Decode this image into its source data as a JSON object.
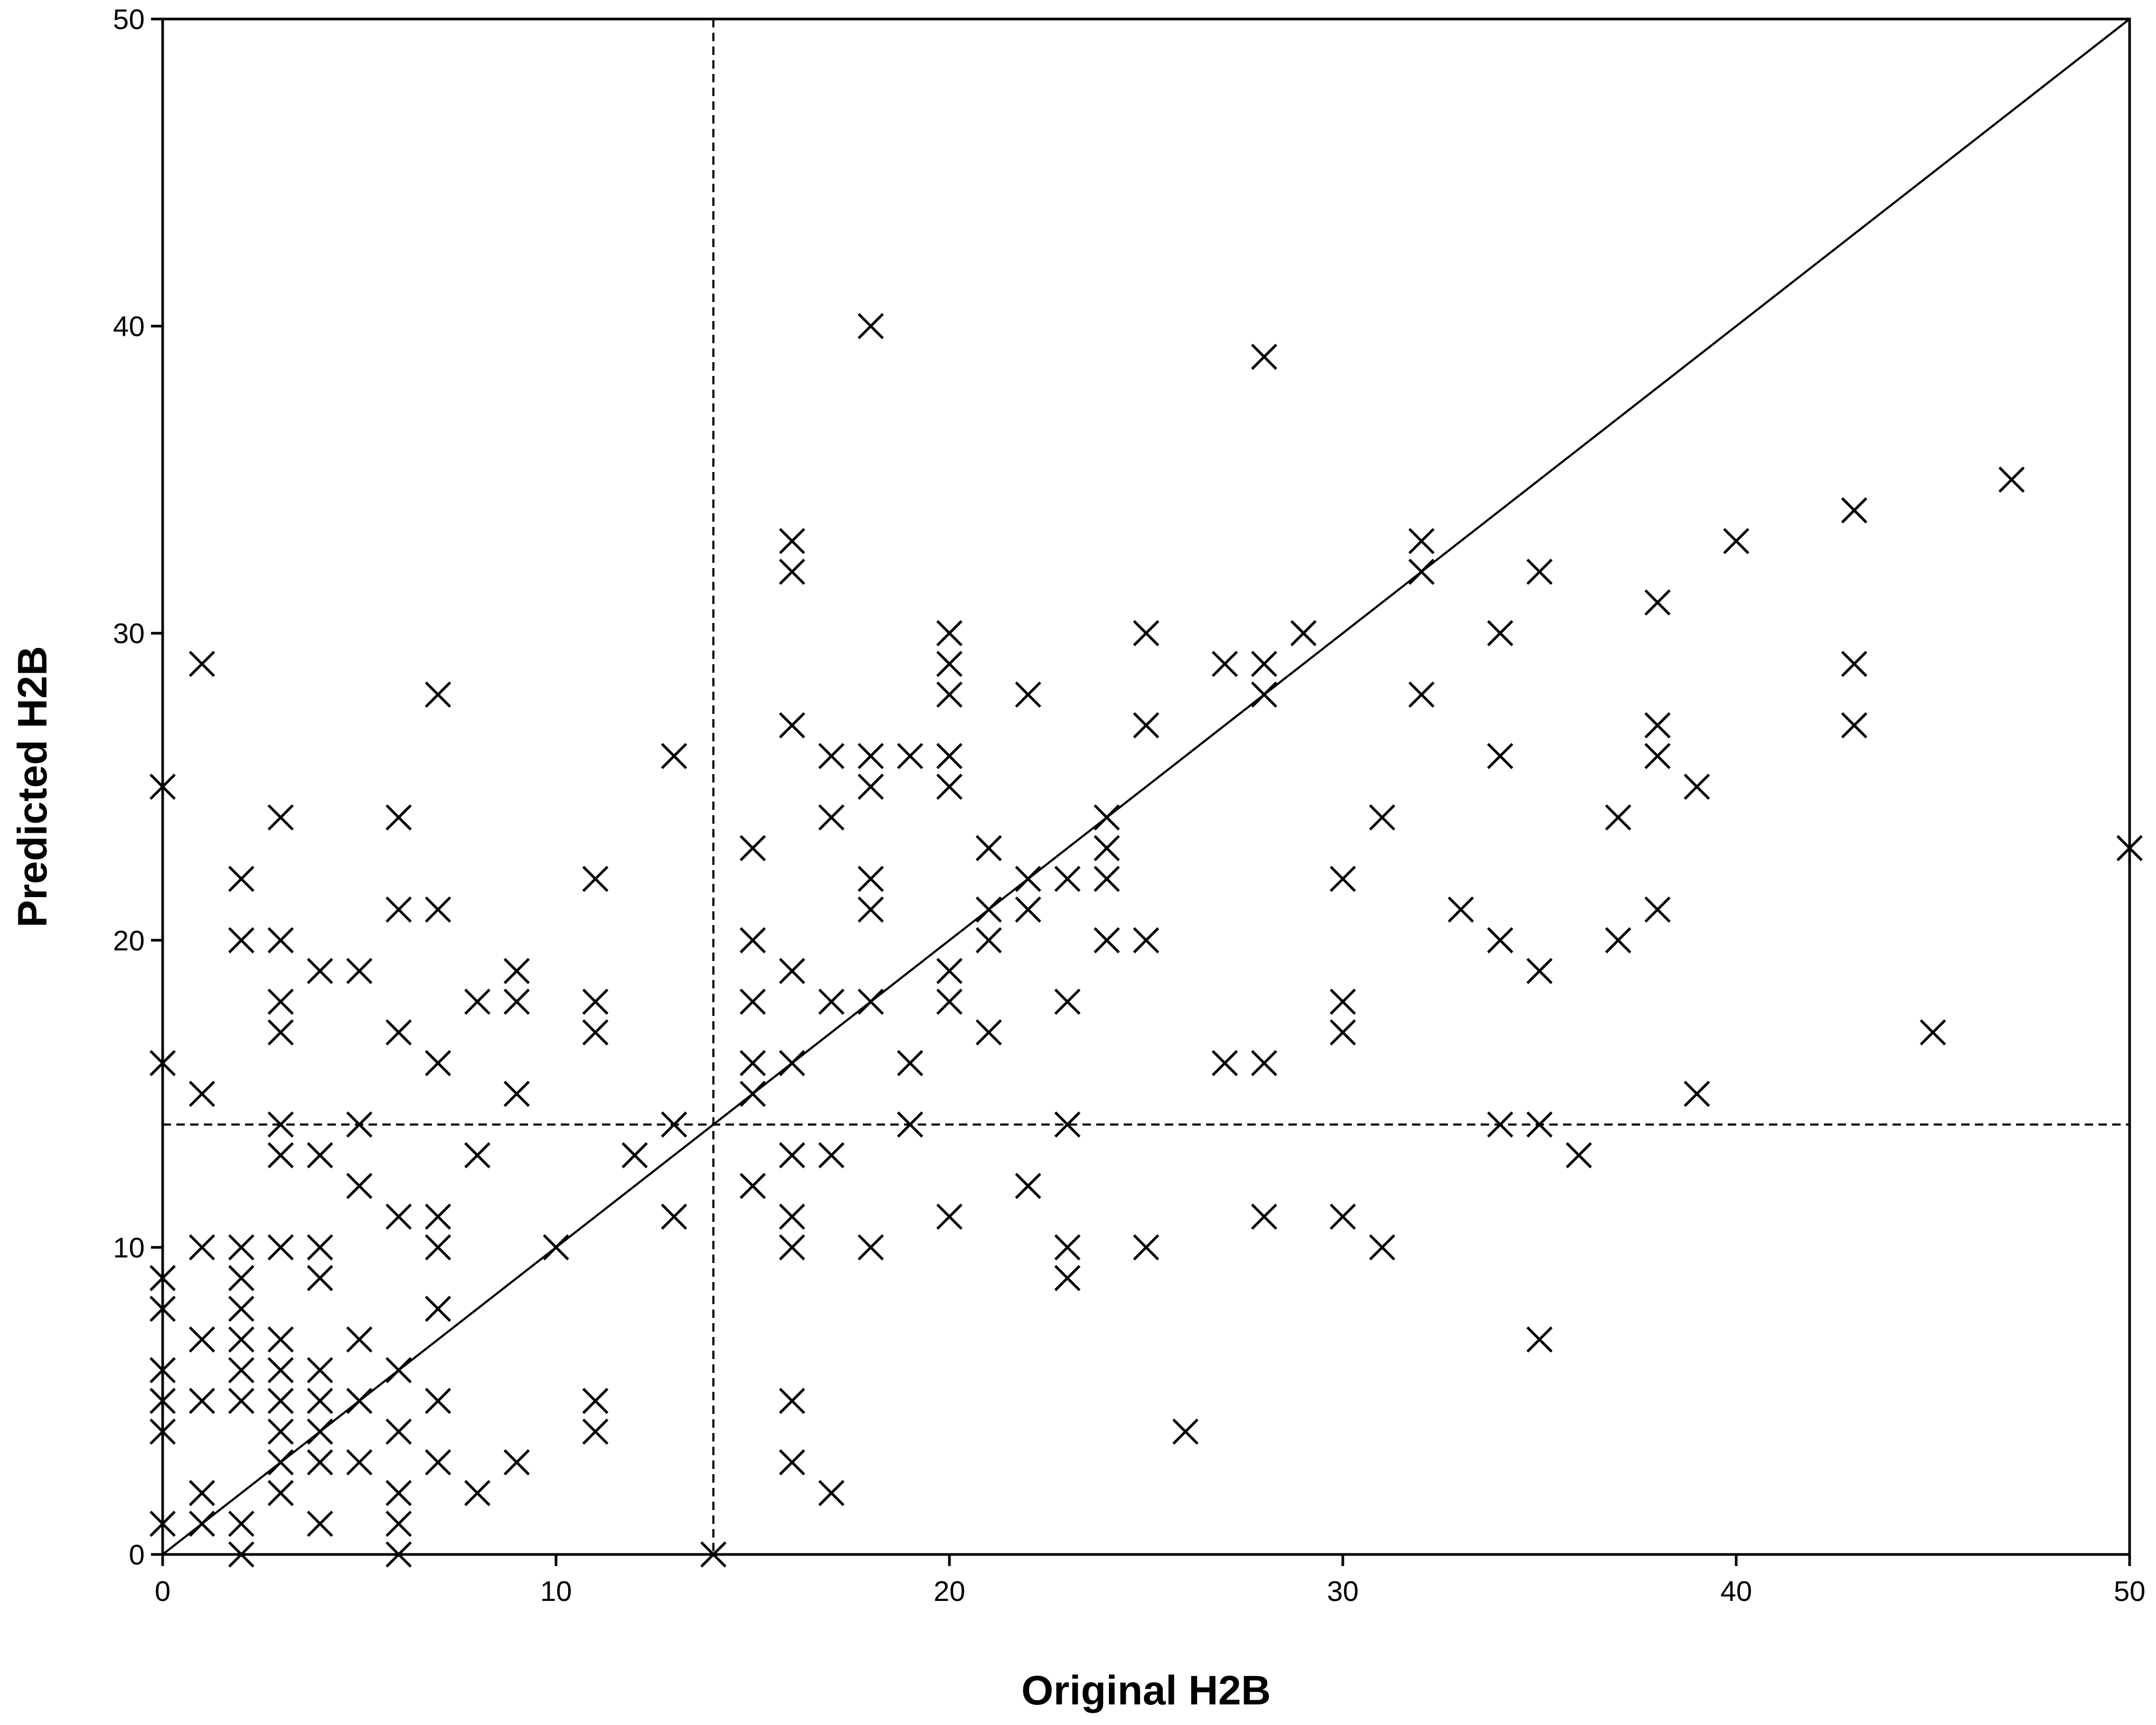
{
  "chart_data": {
    "type": "scatter",
    "title": "",
    "xlabel": "Original H2B",
    "ylabel": "Predicted H2B",
    "xlim": [
      0,
      50
    ],
    "ylim": [
      0,
      50
    ],
    "xticks": [
      "0",
      "10",
      "20",
      "30",
      "40",
      "50"
    ],
    "yticks": [
      "0",
      "10",
      "20",
      "30",
      "40",
      "50"
    ],
    "grid": false,
    "legend": "none",
    "marker": "x",
    "marker_color": "#000000",
    "reference_lines": {
      "identity": {
        "from": [
          0,
          0
        ],
        "to": [
          50,
          50
        ],
        "style": "solid"
      },
      "vertical_dashed_x": 14,
      "horizontal_dashed_y": 14
    },
    "points": [
      [
        0,
        25
      ],
      [
        0,
        16
      ],
      [
        0,
        9
      ],
      [
        0,
        8
      ],
      [
        0,
        6
      ],
      [
        0,
        5
      ],
      [
        0,
        4
      ],
      [
        0,
        1
      ],
      [
        1,
        29
      ],
      [
        1,
        15
      ],
      [
        1,
        10
      ],
      [
        1,
        7
      ],
      [
        1,
        5
      ],
      [
        1,
        2
      ],
      [
        1,
        1
      ],
      [
        2,
        22
      ],
      [
        2,
        20
      ],
      [
        2,
        10
      ],
      [
        2,
        9
      ],
      [
        2,
        8
      ],
      [
        2,
        7
      ],
      [
        2,
        6
      ],
      [
        2,
        5
      ],
      [
        2,
        1
      ],
      [
        2,
        0
      ],
      [
        3,
        24
      ],
      [
        3,
        20
      ],
      [
        3,
        18
      ],
      [
        3,
        17
      ],
      [
        3,
        14
      ],
      [
        3,
        13
      ],
      [
        3,
        10
      ],
      [
        3,
        7
      ],
      [
        3,
        6
      ],
      [
        3,
        5
      ],
      [
        3,
        4
      ],
      [
        3,
        3
      ],
      [
        3,
        2
      ],
      [
        4,
        19
      ],
      [
        4,
        13
      ],
      [
        4,
        10
      ],
      [
        4,
        9
      ],
      [
        4,
        6
      ],
      [
        4,
        5
      ],
      [
        4,
        4
      ],
      [
        4,
        3
      ],
      [
        4,
        1
      ],
      [
        5,
        19
      ],
      [
        5,
        14
      ],
      [
        5,
        12
      ],
      [
        5,
        7
      ],
      [
        5,
        5
      ],
      [
        5,
        3
      ],
      [
        6,
        24
      ],
      [
        6,
        21
      ],
      [
        6,
        17
      ],
      [
        6,
        11
      ],
      [
        6,
        6
      ],
      [
        6,
        4
      ],
      [
        6,
        2
      ],
      [
        6,
        1
      ],
      [
        6,
        0
      ],
      [
        7,
        28
      ],
      [
        7,
        21
      ],
      [
        7,
        16
      ],
      [
        7,
        11
      ],
      [
        7,
        10
      ],
      [
        7,
        8
      ],
      [
        7,
        5
      ],
      [
        7,
        3
      ],
      [
        8,
        18
      ],
      [
        8,
        13
      ],
      [
        8,
        2
      ],
      [
        9,
        19
      ],
      [
        9,
        18
      ],
      [
        9,
        15
      ],
      [
        9,
        3
      ],
      [
        10,
        10
      ],
      [
        11,
        22
      ],
      [
        11,
        18
      ],
      [
        11,
        17
      ],
      [
        11,
        5
      ],
      [
        11,
        4
      ],
      [
        12,
        13
      ],
      [
        13,
        26
      ],
      [
        13,
        14
      ],
      [
        13,
        11
      ],
      [
        14,
        0
      ],
      [
        15,
        23
      ],
      [
        15,
        20
      ],
      [
        15,
        18
      ],
      [
        15,
        16
      ],
      [
        15,
        15
      ],
      [
        15,
        12
      ],
      [
        16,
        33
      ],
      [
        16,
        32
      ],
      [
        16,
        27
      ],
      [
        16,
        19
      ],
      [
        16,
        16
      ],
      [
        16,
        13
      ],
      [
        16,
        11
      ],
      [
        16,
        10
      ],
      [
        16,
        5
      ],
      [
        16,
        3
      ],
      [
        17,
        26
      ],
      [
        17,
        24
      ],
      [
        17,
        18
      ],
      [
        17,
        13
      ],
      [
        17,
        2
      ],
      [
        18,
        40
      ],
      [
        18,
        26
      ],
      [
        18,
        25
      ],
      [
        18,
        22
      ],
      [
        18,
        21
      ],
      [
        18,
        18
      ],
      [
        18,
        10
      ],
      [
        19,
        26
      ],
      [
        19,
        16
      ],
      [
        19,
        14
      ],
      [
        20,
        30
      ],
      [
        20,
        29
      ],
      [
        20,
        28
      ],
      [
        20,
        26
      ],
      [
        20,
        25
      ],
      [
        20,
        19
      ],
      [
        20,
        18
      ],
      [
        20,
        11
      ],
      [
        21,
        23
      ],
      [
        21,
        21
      ],
      [
        21,
        20
      ],
      [
        21,
        17
      ],
      [
        22,
        28
      ],
      [
        22,
        22
      ],
      [
        22,
        21
      ],
      [
        22,
        12
      ],
      [
        23,
        22
      ],
      [
        23,
        18
      ],
      [
        23,
        14
      ],
      [
        23,
        10
      ],
      [
        23,
        9
      ],
      [
        24,
        24
      ],
      [
        24,
        23
      ],
      [
        24,
        22
      ],
      [
        24,
        20
      ],
      [
        25,
        30
      ],
      [
        25,
        27
      ],
      [
        25,
        20
      ],
      [
        25,
        10
      ],
      [
        26,
        4
      ],
      [
        27,
        29
      ],
      [
        27,
        16
      ],
      [
        28,
        39
      ],
      [
        28,
        29
      ],
      [
        28,
        28
      ],
      [
        28,
        16
      ],
      [
        28,
        11
      ],
      [
        29,
        30
      ],
      [
        30,
        22
      ],
      [
        30,
        18
      ],
      [
        30,
        17
      ],
      [
        30,
        11
      ],
      [
        31,
        24
      ],
      [
        31,
        10
      ],
      [
        32,
        33
      ],
      [
        32,
        32
      ],
      [
        32,
        28
      ],
      [
        33,
        21
      ],
      [
        34,
        30
      ],
      [
        34,
        26
      ],
      [
        34,
        20
      ],
      [
        34,
        14
      ],
      [
        35,
        32
      ],
      [
        35,
        19
      ],
      [
        35,
        14
      ],
      [
        35,
        7
      ],
      [
        36,
        13
      ],
      [
        37,
        24
      ],
      [
        37,
        20
      ],
      [
        38,
        31
      ],
      [
        38,
        27
      ],
      [
        38,
        26
      ],
      [
        38,
        21
      ],
      [
        39,
        25
      ],
      [
        39,
        15
      ],
      [
        40,
        33
      ],
      [
        43,
        34
      ],
      [
        43,
        29
      ],
      [
        43,
        27
      ],
      [
        45,
        17
      ],
      [
        47,
        35
      ],
      [
        50,
        23
      ]
    ]
  }
}
